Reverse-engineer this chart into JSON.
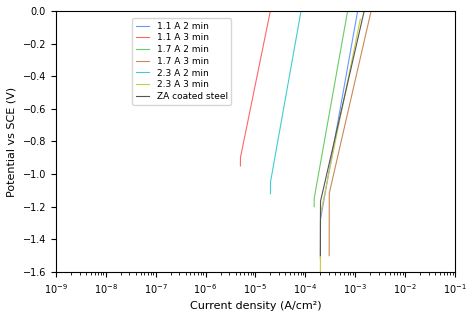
{
  "xlabel": "Current density (A/cm²)",
  "ylabel": "Potential vs SCE (V)",
  "xlim": [
    1e-09,
    0.1
  ],
  "ylim": [
    -1.6,
    0.0
  ],
  "legend_labels": [
    "1.1 A 2 min",
    "1.1 A 3 min",
    "1.7 A 2 min",
    "1.7 A 3 min",
    "2.3 A 2 min",
    "2.3 A 3 min",
    "ZA coated steel"
  ],
  "colors": [
    "#6699ff",
    "#ff6666",
    "#66cc66",
    "#cc8855",
    "#44cccc",
    "#cccc44",
    "#555555"
  ],
  "curves": [
    {
      "E_corr": -1.28,
      "I_corr": 0.0002,
      "E_low": -1.52,
      "E_high": 0.0,
      "I_min": 1e-08,
      "I_max": 0.005,
      "ba": 0.07,
      "bc": 0.09
    },
    {
      "E_corr": -0.9,
      "I_corr": 5e-06,
      "E_low": -0.95,
      "E_high": 0.0,
      "I_min": 5e-09,
      "I_max": 0.003,
      "ba": 0.08,
      "bc": 0.1
    },
    {
      "E_corr": -1.15,
      "I_corr": 0.00015,
      "E_low": -1.2,
      "E_high": 0.0,
      "I_min": 5e-08,
      "I_max": 0.002,
      "ba": 0.07,
      "bc": 0.09
    },
    {
      "E_corr": -1.12,
      "I_corr": 0.0003,
      "E_low": -1.5,
      "E_high": 0.0,
      "I_min": 1e-07,
      "I_max": 0.01,
      "ba": 0.09,
      "bc": 0.08
    },
    {
      "E_corr": -1.05,
      "I_corr": 2e-05,
      "E_low": -1.12,
      "E_high": 0.0,
      "I_min": 1e-08,
      "I_max": 0.0015,
      "ba": 0.07,
      "bc": 0.1
    },
    {
      "E_corr": -1.25,
      "I_corr": 0.0002,
      "E_low": -1.62,
      "E_high": -0.05,
      "I_min": 5e-08,
      "I_max": 0.002,
      "ba": 0.08,
      "bc": 0.09
    },
    {
      "E_corr": -1.17,
      "I_corr": 0.0002,
      "E_low": -1.5,
      "E_high": 0.0,
      "I_min": 5e-08,
      "I_max": 0.01,
      "ba": 0.09,
      "bc": 0.08
    }
  ],
  "figsize": [
    4.74,
    3.18
  ],
  "dpi": 100,
  "linewidth": 0.8,
  "xlabel_fontsize": 8,
  "ylabel_fontsize": 8,
  "tick_fontsize": 7,
  "legend_fontsize": 6.5
}
